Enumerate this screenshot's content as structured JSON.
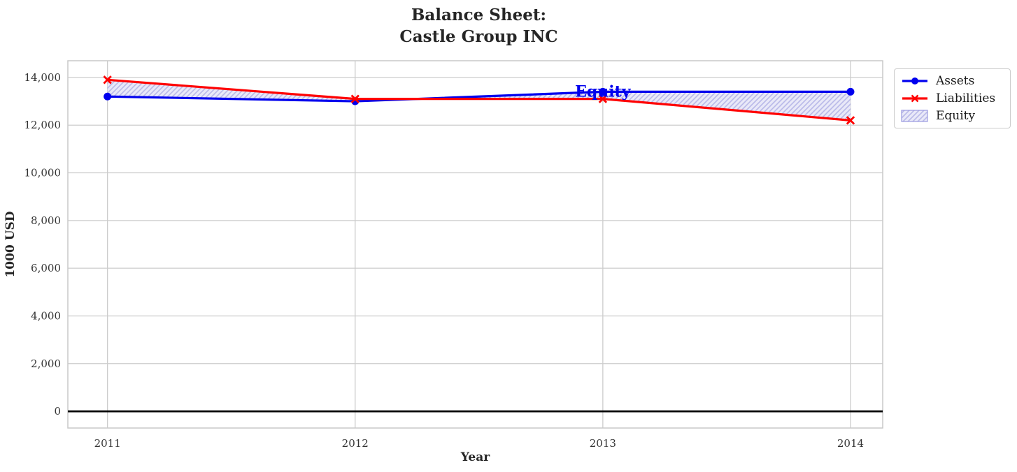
{
  "title": "Balance Sheet:\nCastle Group INC",
  "chart_data": {
    "type": "line",
    "title": "Balance Sheet: Castle Group INC",
    "x": [
      2011,
      2012,
      2013,
      2014
    ],
    "xtick_labels": [
      "2011",
      "2012",
      "2013",
      "2014"
    ],
    "yticks": [
      0,
      2000,
      4000,
      6000,
      8000,
      10000,
      12000,
      14000
    ],
    "ytick_labels": [
      "0",
      "2,000",
      "4,000",
      "6,000",
      "8,000",
      "10,000",
      "12,000",
      "14,000"
    ],
    "xlim": [
      2010.84,
      2014.13
    ],
    "ylim": [
      -700,
      14700
    ],
    "xlabel": "Year",
    "ylabel": "1000 USD",
    "grid": true,
    "legend_position": "upper right outside",
    "zero_line": true,
    "series": [
      {
        "name": "Assets",
        "color": "#0000EE",
        "marker": "circle",
        "values": [
          13200,
          13000,
          13400,
          13400
        ]
      },
      {
        "name": "Liabilities",
        "color": "#FF0000",
        "marker": "x",
        "values": [
          13900,
          13100,
          13100,
          12200
        ]
      }
    ],
    "equity_area": {
      "label": "Equity",
      "between": [
        "Assets",
        "Liabilities"
      ],
      "values": [
        -700,
        -100,
        300,
        1200
      ],
      "fill_color": "#E9E9F8",
      "hatch_color": "#B9B9E8",
      "edge_color": "#9a9ae0",
      "hatch": "//"
    },
    "annotation": {
      "text": "Equity",
      "x": 2013,
      "y": 13400,
      "color": "#0000EE"
    },
    "styles": {
      "grid_color": "#cccccc",
      "spine_color": "#c9c9c9",
      "tick_color": "#333333",
      "zero_line_color": "#000000"
    }
  },
  "legend": {
    "items": [
      {
        "label": "Assets"
      },
      {
        "label": "Liabilities"
      },
      {
        "label": "Equity"
      }
    ]
  }
}
